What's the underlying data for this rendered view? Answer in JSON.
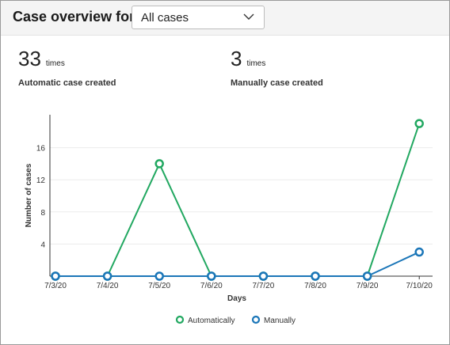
{
  "header": {
    "title": "Case overview for",
    "filter": {
      "selected": "All cases",
      "chevron_icon": "chevron-down-icon"
    }
  },
  "stats": [
    {
      "value": "33",
      "unit": "times",
      "label": "Automatic case created"
    },
    {
      "value": "3",
      "unit": "times",
      "label": "Manually case created"
    }
  ],
  "chart_data": {
    "type": "line",
    "categories": [
      "7/3/20",
      "7/4/20",
      "7/5/20",
      "7/6/20",
      "7/7/20",
      "7/8/20",
      "7/9/20",
      "7/10/20"
    ],
    "series": [
      {
        "name": "Automatically",
        "color": "#22a861",
        "values": [
          0,
          0,
          14,
          0,
          0,
          0,
          0,
          19
        ]
      },
      {
        "name": "Manually",
        "color": "#1b76b8",
        "values": [
          0,
          0,
          0,
          0,
          0,
          0,
          0,
          3
        ]
      }
    ],
    "xlabel": "Days",
    "ylabel": "Number of cases",
    "ylim": [
      0,
      20
    ],
    "yticks": [
      4,
      8,
      12,
      16
    ],
    "grid": true,
    "legend": "bottom-center"
  }
}
